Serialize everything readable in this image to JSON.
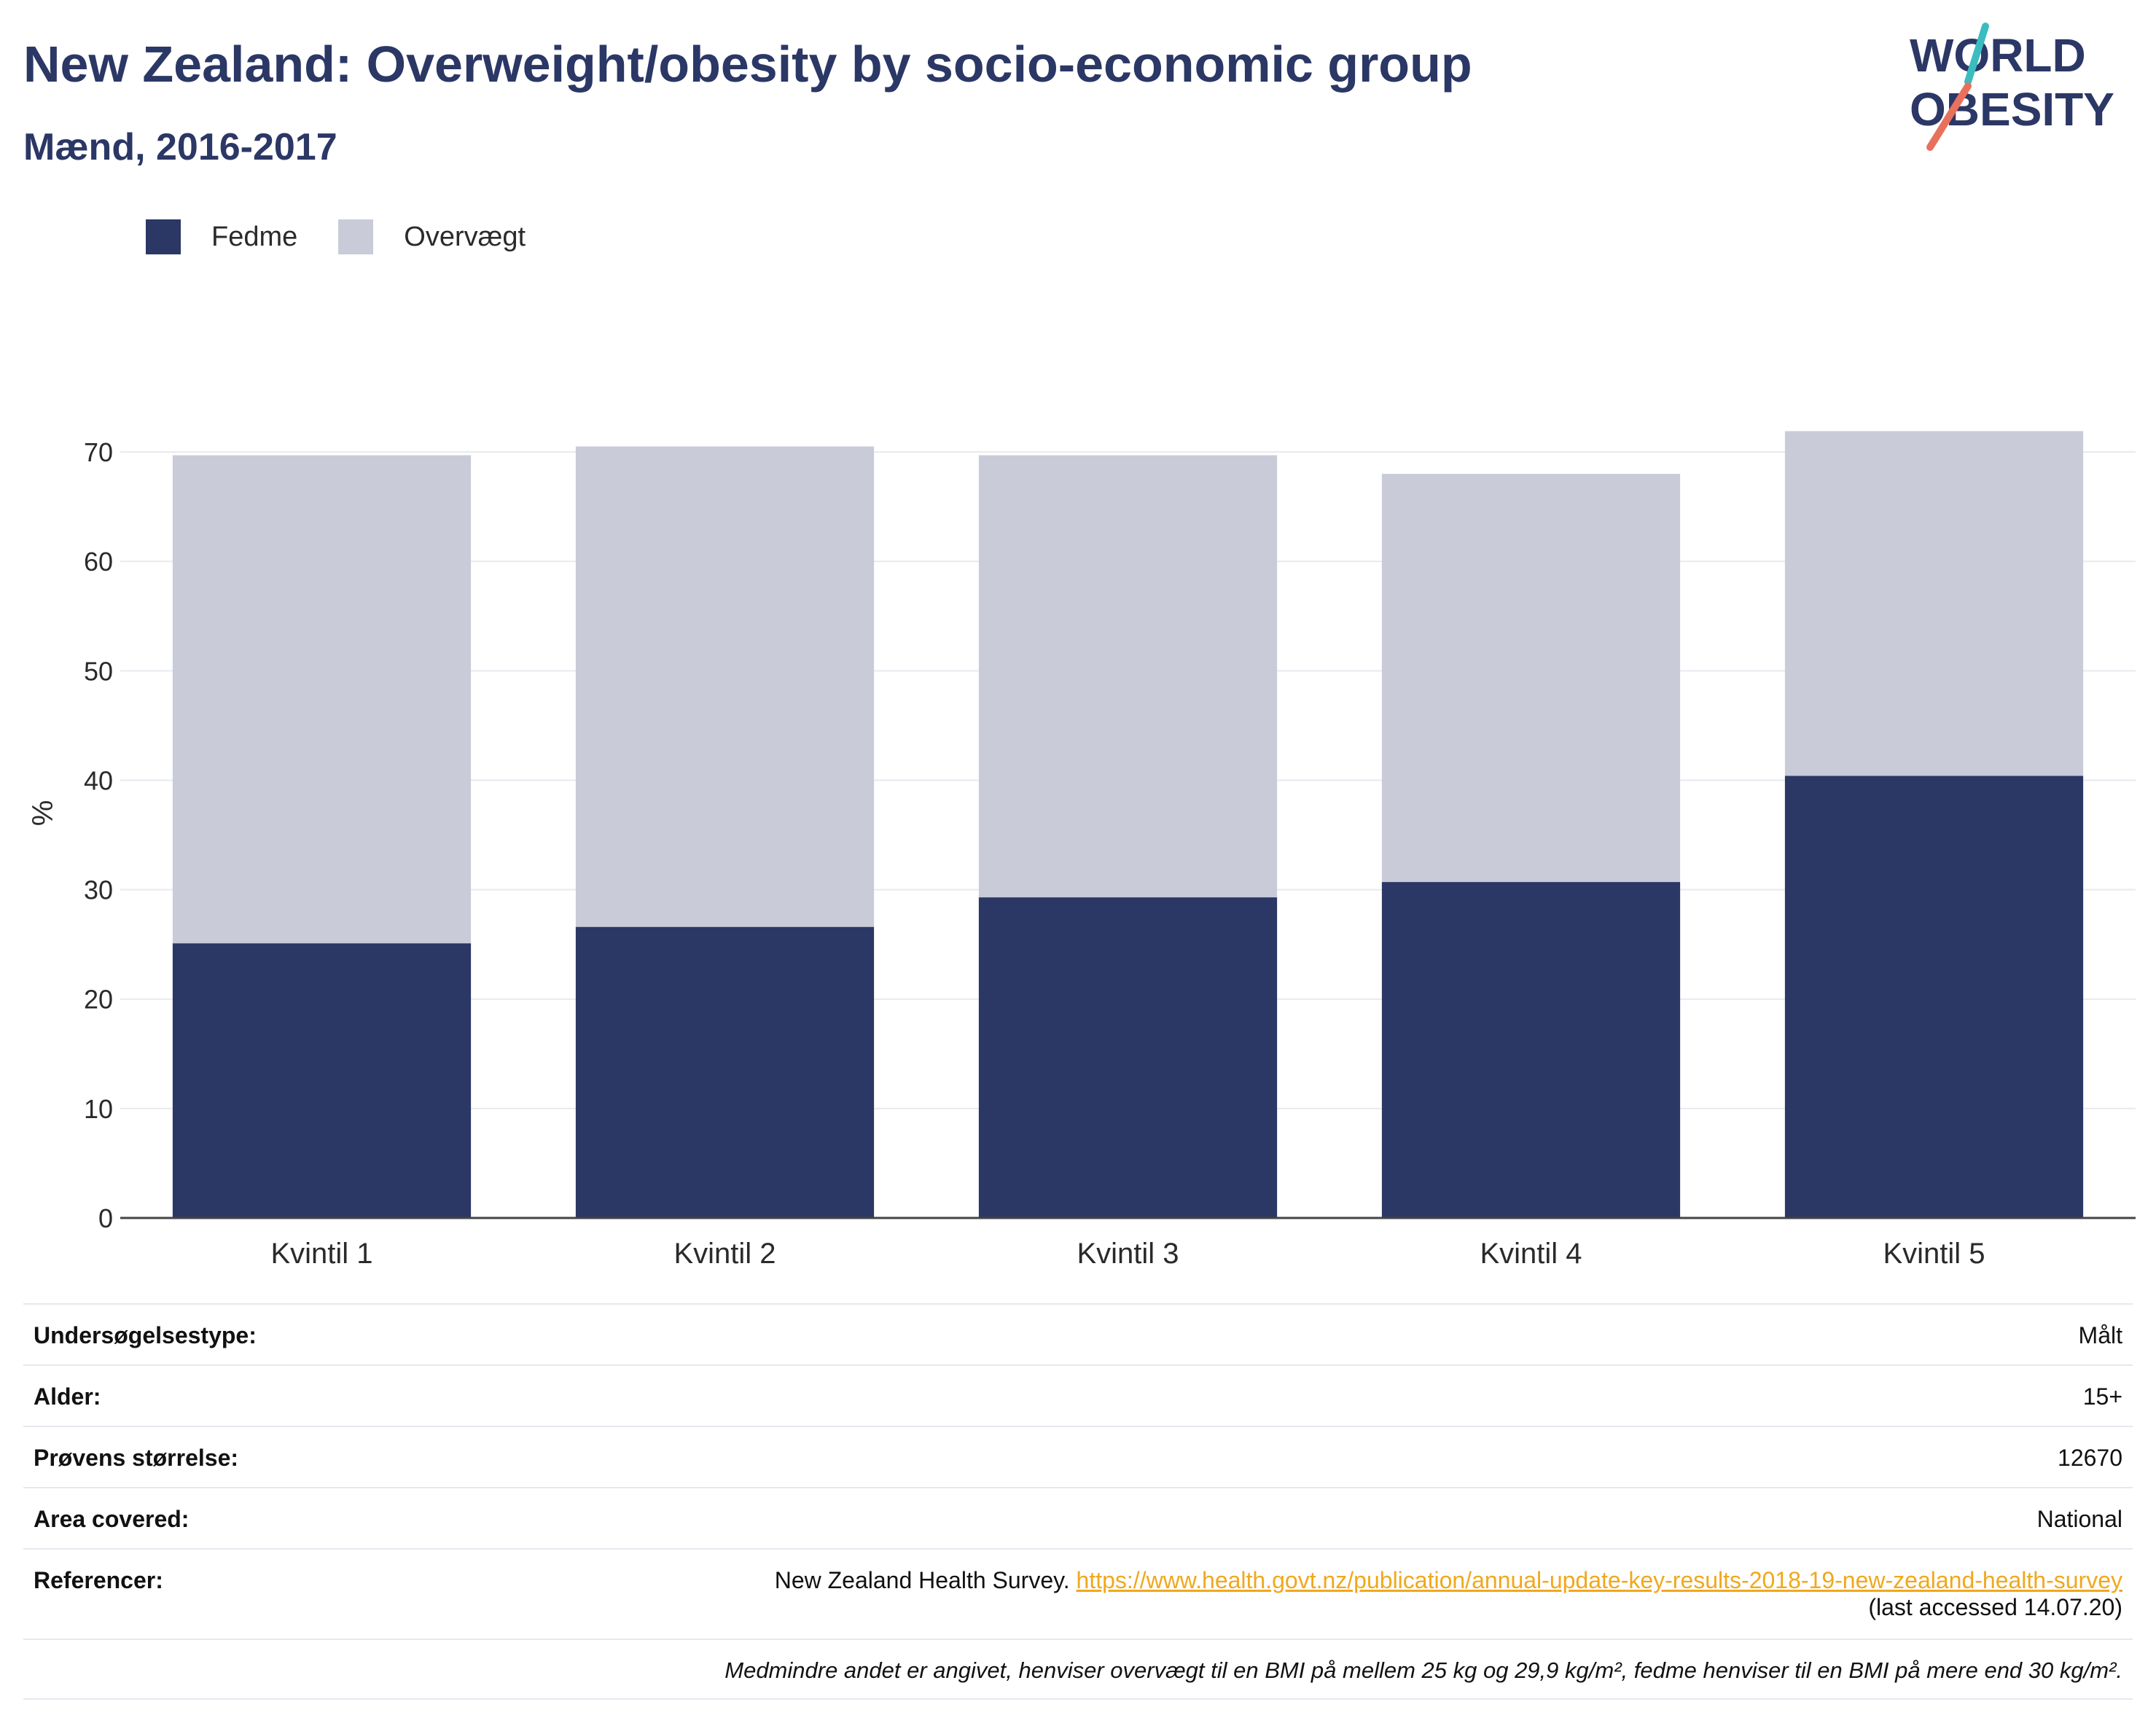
{
  "header": {
    "title": "New Zealand: Overweight/obesity by socio-economic group",
    "subtitle": "Mænd, 2016-2017"
  },
  "logo": {
    "line1": "WORLD",
    "line2": "OBESITY"
  },
  "colors": {
    "fedme": "#2b3765",
    "overvaegt": "#c9cbd8",
    "title": "#2b3765",
    "link": "#f0a81c",
    "logo_teal": "#3bbdc0",
    "logo_coral": "#e8715d"
  },
  "chart_data": {
    "type": "bar",
    "stacked": true,
    "categories": [
      "Kvintil 1",
      "Kvintil 2",
      "Kvintil 3",
      "Kvintil 4",
      "Kvintil 5"
    ],
    "series": [
      {
        "name": "Fedme",
        "values": [
          25.1,
          26.6,
          29.3,
          30.7,
          40.4
        ]
      },
      {
        "name": "Overvægt",
        "values": [
          44.6,
          43.9,
          40.4,
          37.3,
          31.5
        ]
      }
    ],
    "totals": [
      69.7,
      70.5,
      69.7,
      68.0,
      71.9
    ],
    "ylabel": "%",
    "ylim": [
      0,
      74
    ],
    "yticks": [
      0,
      10,
      20,
      30,
      40,
      50,
      60,
      70
    ],
    "grid": true,
    "legend_position": "top-left"
  },
  "info": {
    "survey_type_label": "Undersøgelsestype:",
    "survey_type_value": "Målt",
    "age_label": "Alder:",
    "age_value": "15+",
    "sample_label": "Prøvens størrelse:",
    "sample_value": "12670",
    "area_label": "Area covered:",
    "area_value": "National",
    "ref_label": "Referencer:",
    "ref_text": "New Zealand Health Survey. ",
    "ref_link": "https://www.health.govt.nz/publication/annual-update-key-results-2018-19-new-zealand-health-survey",
    "ref_accessed": "(last accessed 14.07.20)",
    "note": "Medmindre andet er angivet, henviser overvægt til en BMI på mellem 25 kg og 29,9 kg/m², fedme henviser til en BMI på mere end 30 kg/m²."
  }
}
